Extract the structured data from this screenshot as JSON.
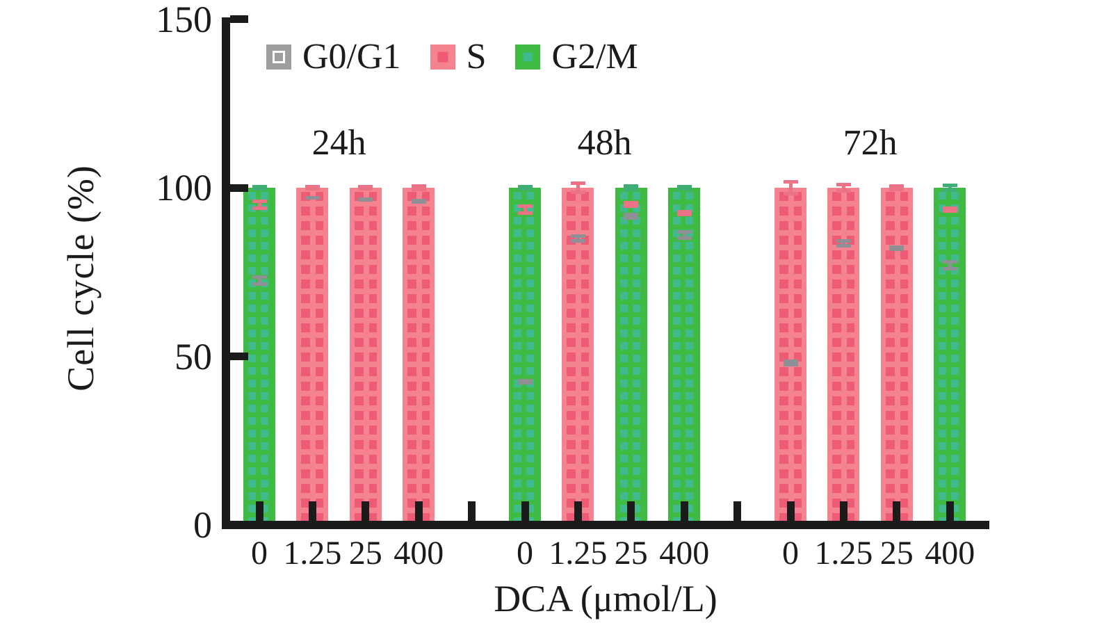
{
  "figure": {
    "background": "#ffffff",
    "axis_color": "#1b1b1b",
    "text_color": "#1b1b1b"
  },
  "chart_data": {
    "type": "bar",
    "stacked": true,
    "title": "",
    "xlabel": "DCA (μmol/L)",
    "ylabel": "Cell cycle (%)",
    "ylim": [
      0,
      150
    ],
    "yticks": [
      0,
      50,
      100,
      150
    ],
    "grid": false,
    "legend_position": "top-left-inside",
    "group_labels": [
      "24h",
      "48h",
      "72h"
    ],
    "categories_per_group": [
      "0",
      "1.25",
      "25",
      "400"
    ],
    "series": [
      {
        "name": "G0/G1",
        "color": "#9e9e9e",
        "pattern": "white-checkerboard",
        "pattern_color": "#ffffff",
        "error_color": "#8f9096",
        "values": [
          72.5,
          97,
          96.5,
          96,
          42.5,
          85,
          91.5,
          86,
          48,
          83.5,
          82,
          77
        ],
        "errors": [
          1.5,
          0.5,
          0.5,
          0.8,
          0.8,
          1.2,
          1.0,
          1.5,
          1.0,
          1.2,
          0.8,
          1.5
        ]
      },
      {
        "name": "S",
        "color": "#f5838f",
        "pattern": "dark-square-grid",
        "pattern_color": "#ee5b76",
        "error_color": "#ec7288",
        "values": [
          22.5,
          3,
          3.5,
          4,
          51,
          15,
          3.5,
          6.5,
          52,
          16.5,
          18,
          16.5
        ],
        "errors": [
          1.5,
          0.8,
          0.8,
          1.0,
          1.5,
          1.8,
          1.0,
          1.0,
          2.2,
          1.5,
          1.0,
          1.0
        ]
      },
      {
        "name": "G2/M",
        "color": "#3fbb43",
        "pattern": "teal-square-grid",
        "pattern_color": "#3fbb8d",
        "error_color": "#3fae74",
        "values": [
          5,
          0,
          0,
          0,
          6.5,
          0,
          5,
          7.5,
          0,
          0,
          0,
          6.5
        ],
        "errors": [
          0.8,
          0,
          0,
          0,
          0.8,
          0,
          1.0,
          0.8,
          0,
          0,
          0,
          1.2
        ]
      }
    ]
  }
}
